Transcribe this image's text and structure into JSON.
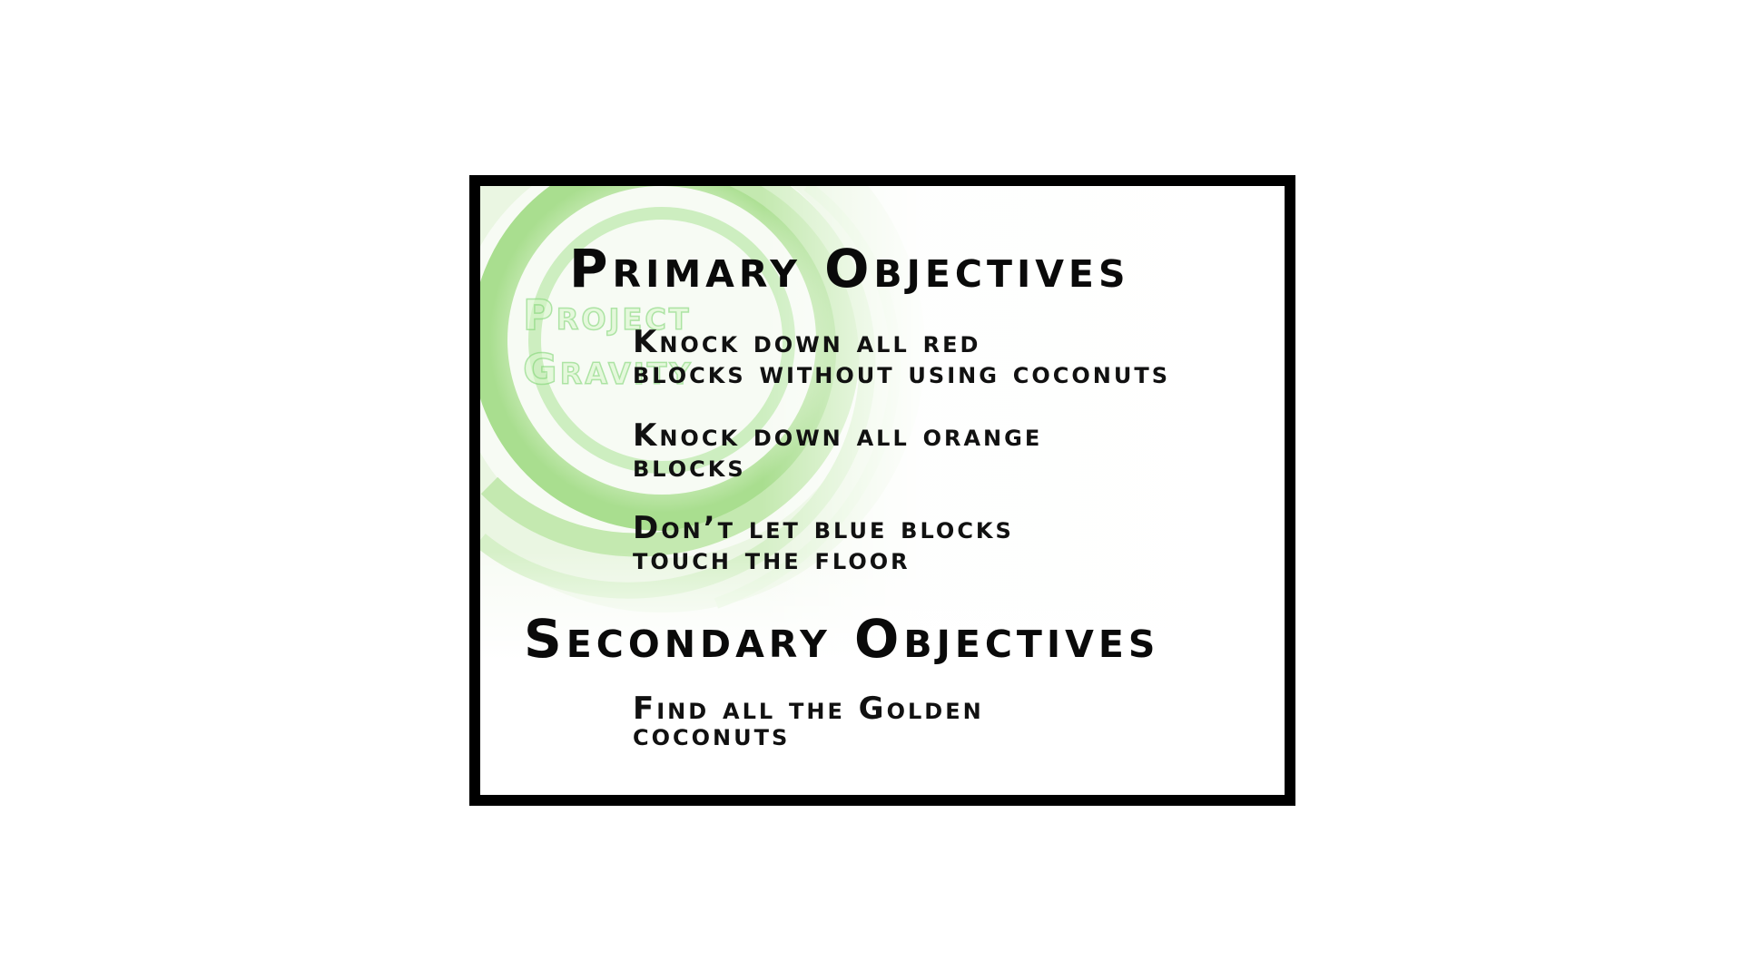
{
  "background_logo": {
    "text": "Project Gravity",
    "accent_colors": [
      "#b9e89a",
      "#7fd06a",
      "#e9f7df"
    ]
  },
  "primary": {
    "heading": "Primary Objectives",
    "items": [
      {
        "line1": "Knock down all red",
        "line2": "blocks without using coconuts"
      },
      {
        "line1": "Knock down all orange",
        "line2": "blocks"
      },
      {
        "line1": "Don’t let blue blocks",
        "line2": "touch the floor"
      }
    ]
  },
  "secondary": {
    "heading": "Secondary Objectives",
    "items": [
      {
        "line1": "Find all the Golden",
        "line2": "coconuts"
      }
    ]
  },
  "colors": {
    "frame": "#000000",
    "text": "#0a0a0a",
    "background": "#ffffff"
  }
}
